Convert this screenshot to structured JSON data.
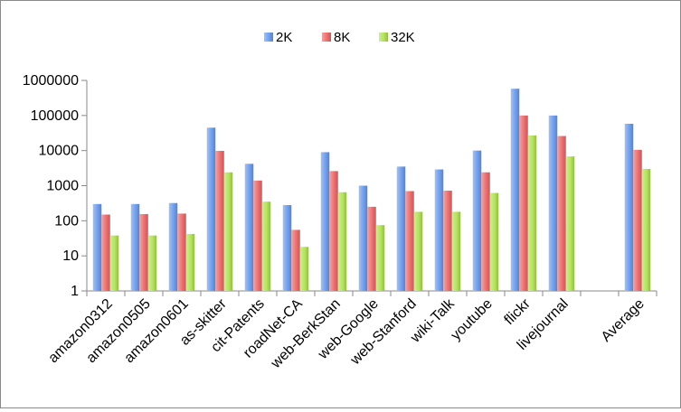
{
  "chart_data": {
    "type": "bar",
    "title": "",
    "xlabel": "",
    "ylabel": "",
    "yscale": "log",
    "ylim": [
      1,
      1000000
    ],
    "yticks": [
      "1",
      "10",
      "100",
      "1000",
      "10000",
      "100000",
      "1000000"
    ],
    "grid": false,
    "legend_position": "top",
    "categories": [
      "amazon0312",
      "amazon0505",
      "amazon0601",
      "as-skitter",
      "cit-Patents",
      "roadNet-CA",
      "web-BerkStan",
      "web-Google",
      "web-Stanford",
      "wiki-Talk",
      "youtube",
      "flickr",
      "livejournal",
      "",
      "Average"
    ],
    "series": [
      {
        "name": "2K",
        "color": "#6f9ff0",
        "values": [
          300,
          300,
          320,
          45000,
          4200,
          280,
          9000,
          1000,
          3500,
          2900,
          10000,
          580000,
          100000,
          null,
          58000
        ]
      },
      {
        "name": "8K",
        "color": "#f06e6e",
        "values": [
          150,
          155,
          160,
          9800,
          1400,
          55,
          2600,
          250,
          700,
          720,
          2400,
          100000,
          26000,
          null,
          10500
        ]
      },
      {
        "name": "32K",
        "color": "#b4e45a",
        "values": [
          38,
          38,
          42,
          2400,
          350,
          18,
          650,
          75,
          180,
          180,
          620,
          27000,
          6800,
          null,
          3000
        ]
      }
    ]
  }
}
